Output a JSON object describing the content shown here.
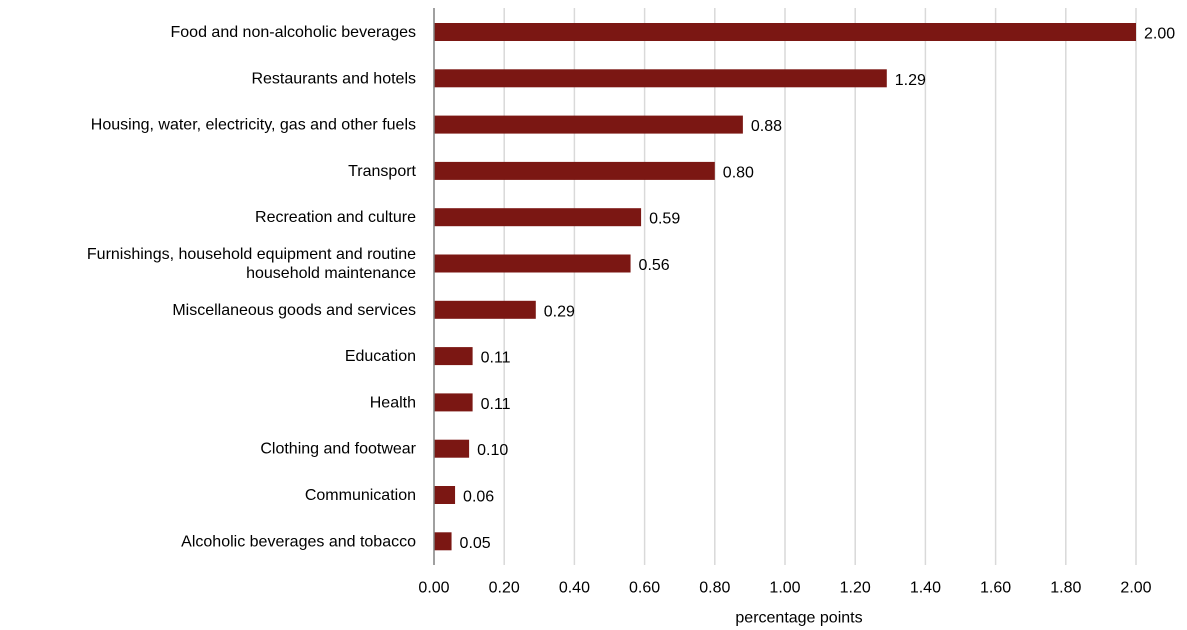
{
  "chart_data": {
    "type": "bar",
    "orientation": "horizontal",
    "categories": [
      [
        "Food and non-alcoholic beverages"
      ],
      [
        "Restaurants and hotels"
      ],
      [
        "Housing, water, electricity, gas and other fuels"
      ],
      [
        "Transport"
      ],
      [
        "Recreation and culture"
      ],
      [
        "Furnishings, household equipment and routine",
        "household maintenance"
      ],
      [
        "Miscellaneous goods and services"
      ],
      [
        "Education"
      ],
      [
        "Health"
      ],
      [
        "Clothing and footwear"
      ],
      [
        "Communication"
      ],
      [
        "Alcoholic beverages and tobacco"
      ]
    ],
    "values": [
      2.0,
      1.29,
      0.88,
      0.8,
      0.59,
      0.56,
      0.29,
      0.11,
      0.11,
      0.1,
      0.06,
      0.05
    ],
    "value_labels": [
      "2.00",
      "1.29",
      "0.88",
      "0.80",
      "0.59",
      "0.56",
      "0.29",
      "0.11",
      "0.11",
      "0.10",
      "0.06",
      "0.05"
    ],
    "xlabel": "percentage points",
    "ylabel": "",
    "xlim": [
      0,
      2.0
    ],
    "x_ticks": [
      0,
      0.2,
      0.4,
      0.6,
      0.8,
      1.0,
      1.2,
      1.4,
      1.6,
      1.8,
      2.0
    ],
    "x_tick_labels": [
      "0.00",
      "0.20",
      "0.40",
      "0.60",
      "0.80",
      "1.00",
      "1.20",
      "1.40",
      "1.60",
      "1.80",
      "2.00"
    ],
    "grid": true,
    "legend": "none",
    "colors": {
      "bar": "#7b1713",
      "grid": "#d9d9d9",
      "axis": "#808080"
    }
  }
}
